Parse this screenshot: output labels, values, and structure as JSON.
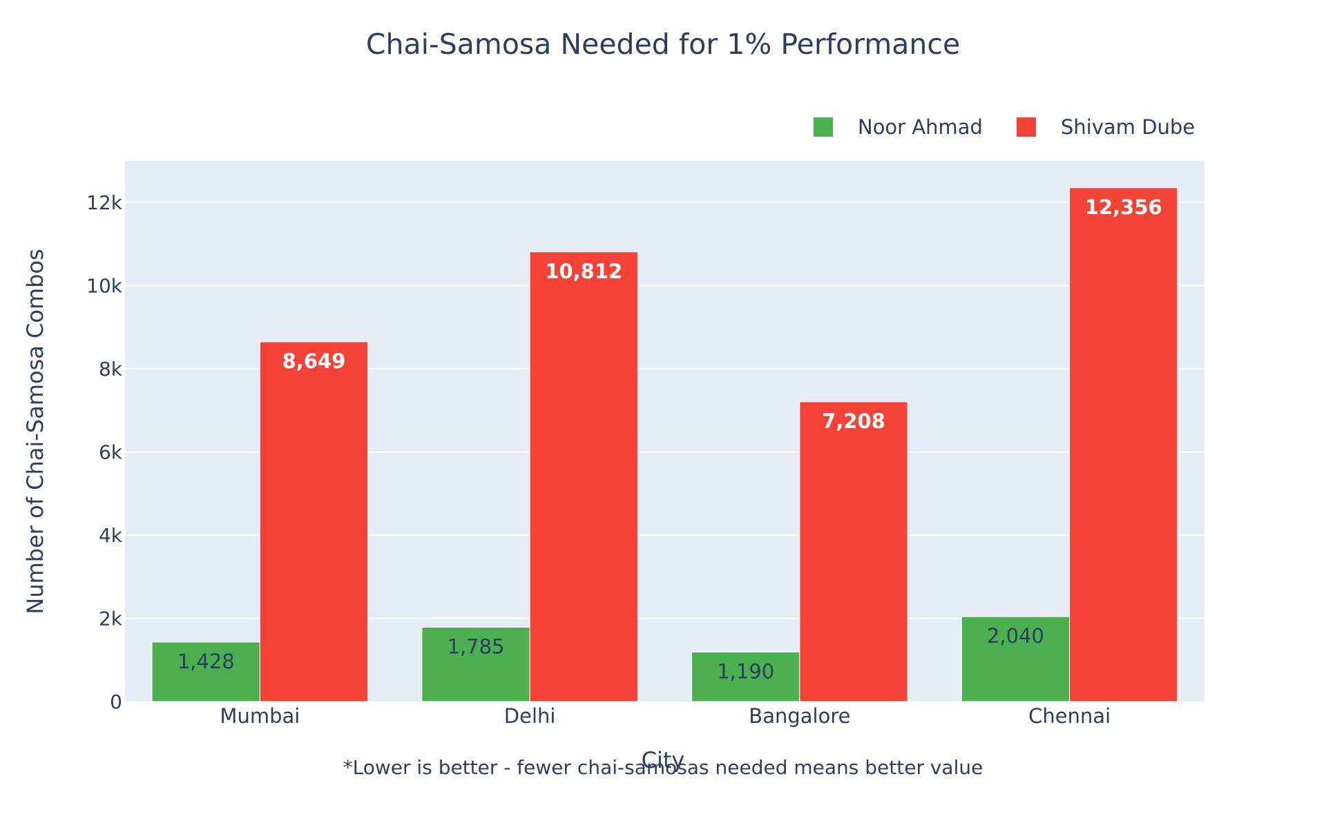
{
  "chart_data": {
    "type": "bar",
    "title": "Chai-Samosa Needed for 1% Performance",
    "xlabel": "City",
    "ylabel": "Number of Chai-Samosa Combos",
    "categories": [
      "Mumbai",
      "Delhi",
      "Bangalore",
      "Chennai"
    ],
    "series": [
      {
        "name": "Noor Ahmad",
        "color": "#4caf50",
        "values": [
          1428,
          1785,
          1190,
          2040
        ],
        "labels": [
          "1,428",
          "1,785",
          "1,190",
          "2,040"
        ]
      },
      {
        "name": "Shivam Dube",
        "color": "#f44336",
        "values": [
          8649,
          10812,
          7208,
          12356
        ],
        "labels": [
          "8,649",
          "10,812",
          "7,208",
          "12,356"
        ]
      }
    ],
    "ylim": [
      0,
      13000
    ],
    "yticks": [
      0,
      2000,
      4000,
      6000,
      8000,
      10000,
      12000
    ],
    "ytick_labels": [
      "0",
      "2k",
      "4k",
      "6k",
      "8k",
      "10k",
      "12k"
    ],
    "grid": true,
    "legend_position": "top-right",
    "annotation": "*Lower is better - fewer chai-samosas needed means better value",
    "colors": {
      "plot_background": "#e5ecf6",
      "text": "#2a3f5f",
      "grid": "#ffffff"
    }
  }
}
